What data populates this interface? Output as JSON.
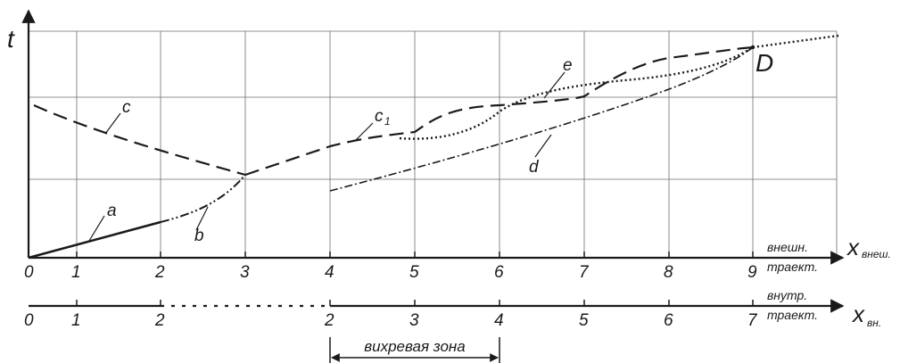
{
  "axis_t": "t",
  "axis_outer": {
    "name": "x",
    "sub": "внеш.",
    "note_top": "внешн.",
    "note_bottom": "траект."
  },
  "axis_inner": {
    "name": "x",
    "sub": "вн.",
    "note_top": "внутр.",
    "note_bottom": "траект."
  },
  "outer_ticks": [
    "0",
    "1",
    "2",
    "3",
    "4",
    "5",
    "6",
    "7",
    "8",
    "9"
  ],
  "inner_ticks": [
    "0",
    "1",
    "2",
    "2",
    "3",
    "4",
    "5",
    "6",
    "7"
  ],
  "zone_label": "вихревая зона",
  "point_D": "D",
  "curve_labels": {
    "a": "a",
    "b": "b",
    "c": "c",
    "c1_main": "c",
    "c1_sub": "1",
    "d": "d",
    "e": "e"
  },
  "colors": {
    "ink": "#1a1a1a",
    "grid": "#6e6e6e"
  }
}
